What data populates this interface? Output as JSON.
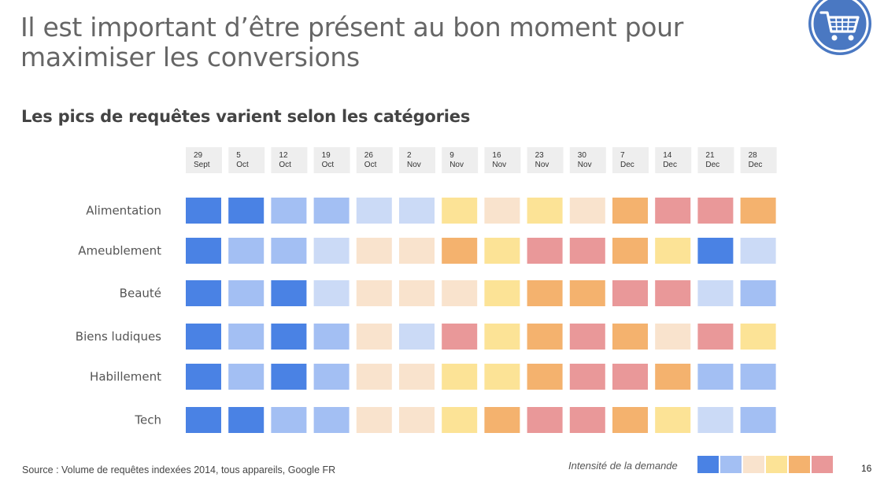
{
  "slide": {
    "title": "Il est important d’être présent au bon moment pour maximiser les conversions",
    "page_number": "16",
    "logo_icon": "shopping-cart-icon",
    "logo_color": "#4a78c2"
  },
  "chart_data": {
    "type": "heatmap",
    "title": "Les pics de requêtes varient selon les catégories",
    "columns": [
      [
        "29",
        "Sept"
      ],
      [
        "5",
        "Oct"
      ],
      [
        "12",
        "Oct"
      ],
      [
        "19",
        "Oct"
      ],
      [
        "26",
        "Oct"
      ],
      [
        "2",
        "Nov"
      ],
      [
        "9",
        "Nov"
      ],
      [
        "16",
        "Nov"
      ],
      [
        "23",
        "Nov"
      ],
      [
        "30",
        "Nov"
      ],
      [
        "7",
        "Dec"
      ],
      [
        "14",
        "Dec"
      ],
      [
        "21",
        "Dec"
      ],
      [
        "28",
        "Dec"
      ]
    ],
    "rows": [
      "Alimentation",
      "Ameublement",
      "Beauté",
      "Biens ludiques",
      "Habillement",
      "Tech"
    ],
    "values": [
      [
        0,
        0,
        1,
        1,
        2,
        2,
        4,
        3,
        4,
        3,
        5,
        6,
        6,
        5
      ],
      [
        0,
        1,
        1,
        2,
        3,
        3,
        5,
        4,
        6,
        6,
        5,
        4,
        0,
        2
      ],
      [
        0,
        1,
        0,
        2,
        3,
        3,
        3,
        4,
        5,
        5,
        6,
        6,
        2,
        1
      ],
      [
        0,
        1,
        0,
        1,
        3,
        2,
        6,
        4,
        5,
        6,
        5,
        3,
        6,
        4
      ],
      [
        0,
        1,
        0,
        1,
        3,
        3,
        4,
        4,
        5,
        6,
        6,
        5,
        1,
        1
      ],
      [
        0,
        0,
        1,
        1,
        3,
        3,
        4,
        5,
        6,
        6,
        5,
        4,
        2,
        1
      ]
    ],
    "scale_levels": [
      0,
      1,
      2,
      3,
      4,
      5,
      6
    ],
    "scale_colors": [
      "#4a82e4",
      "#a3bff3",
      "#cbdaf6",
      "#f9e3cd",
      "#fce396",
      "#f4b26e",
      "#e99899"
    ],
    "legend_label": "Intensité de la demande",
    "legend_levels": [
      0,
      1,
      3,
      4,
      5,
      6
    ],
    "header_bg": "#eeeeee"
  },
  "footer": {
    "source": "Source : Volume de requêtes indexées 2014, tous appareils, Google FR"
  }
}
